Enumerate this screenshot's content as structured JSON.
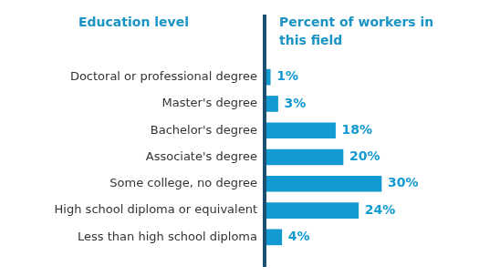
{
  "chart_data": {
    "type": "bar",
    "orientation": "horizontal",
    "y_label": "Education level",
    "x_label": "Percent of workers in this field",
    "categories": [
      "Doctoral or professional degree",
      "Master's degree",
      "Bachelor's degree",
      "Associate's degree",
      "Some college, no degree",
      "High school diploma or equivalent",
      "Less than high school diploma"
    ],
    "values": [
      1,
      3,
      18,
      20,
      30,
      24,
      4
    ],
    "value_labels": [
      "1%",
      "3%",
      "18%",
      "20%",
      "30%",
      "24%",
      "4%"
    ],
    "color": "#139ad2",
    "xlim": [
      0,
      50
    ],
    "grid": false,
    "tick_labels": "y",
    "data_labels": true
  }
}
